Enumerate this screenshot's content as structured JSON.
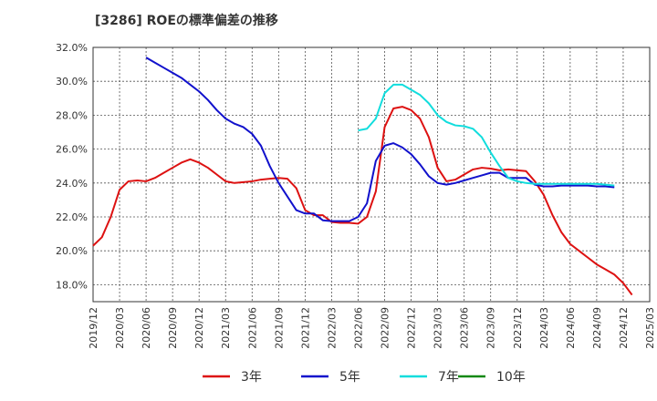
{
  "chart_data": {
    "type": "line",
    "title": "[3286]  ROEの標準偏差の推移",
    "xlabel": "",
    "ylabel": "",
    "ylim": [
      17.0,
      32.0
    ],
    "grid": true,
    "legend_position": "bottom",
    "y_ticks": [
      "32.0%",
      "30.0%",
      "28.0%",
      "26.0%",
      "24.0%",
      "22.0%",
      "20.0%",
      "18.0%"
    ],
    "y_tick_values": [
      32,
      30,
      28,
      26,
      24,
      22,
      20,
      18
    ],
    "x_tick_labels": [
      "2019/12",
      "2020/03",
      "2020/06",
      "2020/09",
      "2020/12",
      "2021/03",
      "2021/06",
      "2021/09",
      "2021/12",
      "2022/03",
      "2022/06",
      "2022/09",
      "2022/12",
      "2023/03",
      "2023/06",
      "2023/09",
      "2023/12",
      "2024/03",
      "2024/06",
      "2024/09",
      "2024/12",
      "2025/03"
    ],
    "start_month": "2019/12",
    "series": [
      {
        "name": "3年",
        "color": "#dd1111",
        "start_index": 0,
        "values": [
          20.3,
          20.8,
          22.0,
          23.6,
          24.1,
          24.15,
          24.1,
          24.3,
          24.6,
          24.9,
          25.2,
          25.4,
          25.2,
          24.9,
          24.5,
          24.1,
          24.0,
          24.05,
          24.1,
          24.2,
          24.25,
          24.3,
          24.25,
          23.7,
          22.4,
          22.1,
          22.1,
          21.7,
          21.65,
          21.65,
          21.6,
          22.0,
          23.5,
          27.3,
          28.4,
          28.5,
          28.3,
          27.8,
          26.7,
          24.9,
          24.1,
          24.2,
          24.5,
          24.8,
          24.9,
          24.85,
          24.75,
          24.8,
          24.75,
          24.7,
          24.1,
          23.3,
          22.1,
          21.1,
          20.4,
          20.0,
          19.6,
          19.2,
          18.9,
          18.6,
          18.1,
          17.4
        ]
      },
      {
        "name": "5年",
        "color": "#1111cc",
        "start_index": 6,
        "values": [
          31.4,
          31.1,
          30.8,
          30.5,
          30.2,
          29.8,
          29.4,
          28.9,
          28.3,
          27.8,
          27.5,
          27.3,
          26.9,
          26.2,
          25.0,
          24.0,
          23.2,
          22.4,
          22.2,
          22.2,
          21.8,
          21.75,
          21.75,
          21.75,
          22.0,
          22.8,
          25.3,
          26.2,
          26.35,
          26.1,
          25.7,
          25.1,
          24.4,
          24.0,
          23.9,
          24.0,
          24.15,
          24.3,
          24.45,
          24.6,
          24.6,
          24.3,
          24.3,
          24.3,
          23.9,
          23.8,
          23.8,
          23.85,
          23.85,
          23.85,
          23.85,
          23.8,
          23.8,
          23.75
        ]
      },
      {
        "name": "7年",
        "color": "#11dddd",
        "start_index": 30,
        "values": [
          27.1,
          27.2,
          27.8,
          29.3,
          29.8,
          29.8,
          29.5,
          29.2,
          28.7,
          28.0,
          27.6,
          27.4,
          27.35,
          27.2,
          26.7,
          25.8,
          25.0,
          24.3,
          24.1,
          24.0,
          23.95,
          23.95,
          23.95,
          23.95,
          23.95,
          23.95,
          23.95,
          23.95,
          23.9,
          23.85
        ]
      },
      {
        "name": "10年",
        "color": "#118811",
        "start_index": 0,
        "values": []
      }
    ]
  }
}
